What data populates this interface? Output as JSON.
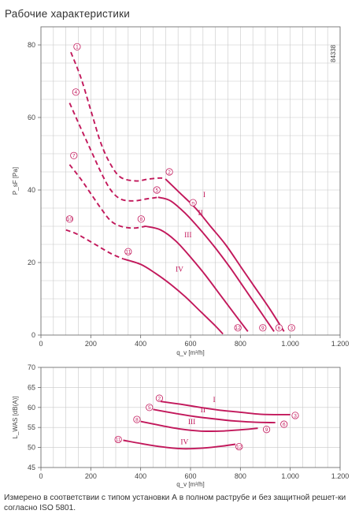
{
  "page": {
    "title": "Рабочие характеристики",
    "footer": "Измерено в соответствии с типом установки А в полном раструбе и без защитной решет-ки согласно ISO 5801.",
    "drawing_id": "84338"
  },
  "colors": {
    "curve": "#c2185b",
    "grid": "#c8c8c8",
    "axis": "#666666"
  },
  "chart_data": [
    {
      "type": "line",
      "xlabel": "q_v [m³/h]",
      "ylabel": "P_sF [Pa]",
      "xlim": [
        0,
        1200
      ],
      "ylim": [
        0,
        85
      ],
      "x_ticks": [
        0,
        200,
        400,
        600,
        800,
        1000,
        1200
      ],
      "x_tick_labels": [
        "0",
        "200",
        "400",
        "600",
        "800",
        "1.000",
        "1.200"
      ],
      "y_ticks": [
        0,
        20,
        40,
        60,
        80
      ],
      "grid": true,
      "series": [
        {
          "name": "I",
          "label_at": [
            650,
            38
          ],
          "style": "solid",
          "points": [
            [
              500,
              43
            ],
            [
              560,
              39
            ],
            [
              620,
              35
            ],
            [
              680,
              30
            ],
            [
              740,
              25
            ],
            [
              800,
              19
            ],
            [
              860,
              13
            ],
            [
              920,
              7
            ],
            [
              975,
              1
            ]
          ]
        },
        {
          "name": "II",
          "label_at": [
            630,
            33
          ],
          "style": "solid",
          "points": [
            [
              470,
              38
            ],
            [
              520,
              37
            ],
            [
              580,
              33.5
            ],
            [
              640,
              29
            ],
            [
              700,
              24
            ],
            [
              760,
              18.5
            ],
            [
              820,
              12.5
            ],
            [
              880,
              6.5
            ],
            [
              935,
              1
            ]
          ]
        },
        {
          "name": "III",
          "label_at": [
            575,
            27
          ],
          "style": "solid",
          "points": [
            [
              420,
              30
            ],
            [
              480,
              29
            ],
            [
              540,
              26
            ],
            [
              600,
              21.5
            ],
            [
              660,
              16.5
            ],
            [
              720,
              11
            ],
            [
              780,
              5.5
            ],
            [
              830,
              1
            ]
          ]
        },
        {
          "name": "IV",
          "label_at": [
            540,
            17.5
          ],
          "style": "solid",
          "points": [
            [
              330,
              21
            ],
            [
              400,
              19.5
            ],
            [
              460,
              17
            ],
            [
              520,
              14
            ],
            [
              580,
              10.5
            ],
            [
              640,
              6.5
            ],
            [
              700,
              2.5
            ],
            [
              730,
              0.3
            ]
          ]
        },
        {
          "name": "1",
          "style": "dashed",
          "points": [
            [
              120,
              78
            ],
            [
              160,
              71
            ],
            [
              200,
              62
            ],
            [
              240,
              53
            ],
            [
              280,
              47
            ],
            [
              320,
              43.5
            ],
            [
              380,
              42.5
            ],
            [
              430,
              43
            ],
            [
              480,
              43.3
            ],
            [
              500,
              43
            ]
          ]
        },
        {
          "name": "4",
          "style": "dashed",
          "points": [
            [
              115,
              64
            ],
            [
              160,
              57
            ],
            [
              200,
              51
            ],
            [
              240,
              45
            ],
            [
              280,
              40
            ],
            [
              320,
              37.5
            ],
            [
              370,
              37
            ],
            [
              420,
              37.5
            ],
            [
              470,
              38
            ]
          ]
        },
        {
          "name": "7",
          "style": "dashed",
          "points": [
            [
              115,
              47
            ],
            [
              160,
              43
            ],
            [
              200,
              39
            ],
            [
              240,
              35
            ],
            [
              280,
              31.5
            ],
            [
              320,
              30
            ],
            [
              370,
              29.5
            ],
            [
              420,
              30
            ]
          ]
        },
        {
          "name": "10",
          "style": "dashed",
          "points": [
            [
              100,
              29
            ],
            [
              140,
              28
            ],
            [
              180,
              26.5
            ],
            [
              230,
              24.5
            ],
            [
              280,
              22.5
            ],
            [
              330,
              21
            ]
          ]
        }
      ],
      "markers": [
        {
          "id": "1",
          "at": [
            145,
            79.5
          ]
        },
        {
          "id": "4",
          "at": [
            140,
            67
          ]
        },
        {
          "id": "7",
          "at": [
            132,
            49.5
          ]
        },
        {
          "id": "10",
          "at": [
            115,
            32
          ]
        },
        {
          "id": "2",
          "at": [
            515,
            45
          ]
        },
        {
          "id": "5",
          "at": [
            465,
            40
          ]
        },
        {
          "id": "8",
          "at": [
            402,
            32
          ]
        },
        {
          "id": "11",
          "at": [
            350,
            23
          ]
        },
        {
          "id": "n",
          "at": [
            610,
            36.5
          ]
        },
        {
          "id": "3",
          "at": [
            1005,
            2
          ]
        },
        {
          "id": "6",
          "at": [
            955,
            2
          ]
        },
        {
          "id": "9",
          "at": [
            890,
            2
          ]
        },
        {
          "id": "12",
          "at": [
            790,
            2
          ]
        }
      ]
    },
    {
      "type": "line",
      "xlabel": "q_v [m³/h]",
      "ylabel": "L_WAS [dB(A)]",
      "xlim": [
        0,
        1200
      ],
      "ylim": [
        45,
        70
      ],
      "x_ticks": [
        0,
        200,
        400,
        600,
        800,
        1000,
        1200
      ],
      "x_tick_labels": [
        "0",
        "200",
        "400",
        "600",
        "800",
        "1.000",
        "1.200"
      ],
      "y_ticks": [
        45,
        50,
        55,
        60,
        65,
        70
      ],
      "grid": true,
      "series": [
        {
          "name": "I",
          "label_at": [
            690,
            61.3
          ],
          "points": [
            [
              480,
              61.5
            ],
            [
              560,
              60.8
            ],
            [
              640,
              60
            ],
            [
              720,
              59.3
            ],
            [
              800,
              58.8
            ],
            [
              880,
              58.3
            ],
            [
              960,
              58.2
            ],
            [
              1000,
              58.2
            ]
          ]
        },
        {
          "name": "II",
          "label_at": [
            640,
            58.8
          ],
          "points": [
            [
              450,
              59.5
            ],
            [
              540,
              58.5
            ],
            [
              620,
              57.7
            ],
            [
              700,
              57.1
            ],
            [
              780,
              56.6
            ],
            [
              860,
              56.3
            ],
            [
              940,
              56.2
            ]
          ]
        },
        {
          "name": "III",
          "label_at": [
            590,
            55.8
          ],
          "points": [
            [
              400,
              56.5
            ],
            [
              480,
              55.5
            ],
            [
              560,
              54.6
            ],
            [
              640,
              54.1
            ],
            [
              720,
              54.1
            ],
            [
              800,
              54.4
            ],
            [
              870,
              54.8
            ]
          ]
        },
        {
          "name": "IV",
          "label_at": [
            560,
            50.8
          ],
          "points": [
            [
              330,
              51.8
            ],
            [
              400,
              51
            ],
            [
              480,
              50.2
            ],
            [
              560,
              49.7
            ],
            [
              640,
              49.8
            ],
            [
              720,
              50.3
            ],
            [
              780,
              50.8
            ]
          ]
        }
      ],
      "markers": [
        {
          "id": "2",
          "at": [
            475,
            62.3
          ]
        },
        {
          "id": "5",
          "at": [
            435,
            60
          ]
        },
        {
          "id": "8",
          "at": [
            385,
            57
          ]
        },
        {
          "id": "11",
          "at": [
            310,
            52
          ]
        },
        {
          "id": "3",
          "at": [
            1020,
            58
          ]
        },
        {
          "id": "6",
          "at": [
            975,
            55.8
          ]
        },
        {
          "id": "9",
          "at": [
            905,
            54.5
          ]
        },
        {
          "id": "12",
          "at": [
            795,
            50.2
          ]
        }
      ]
    }
  ]
}
